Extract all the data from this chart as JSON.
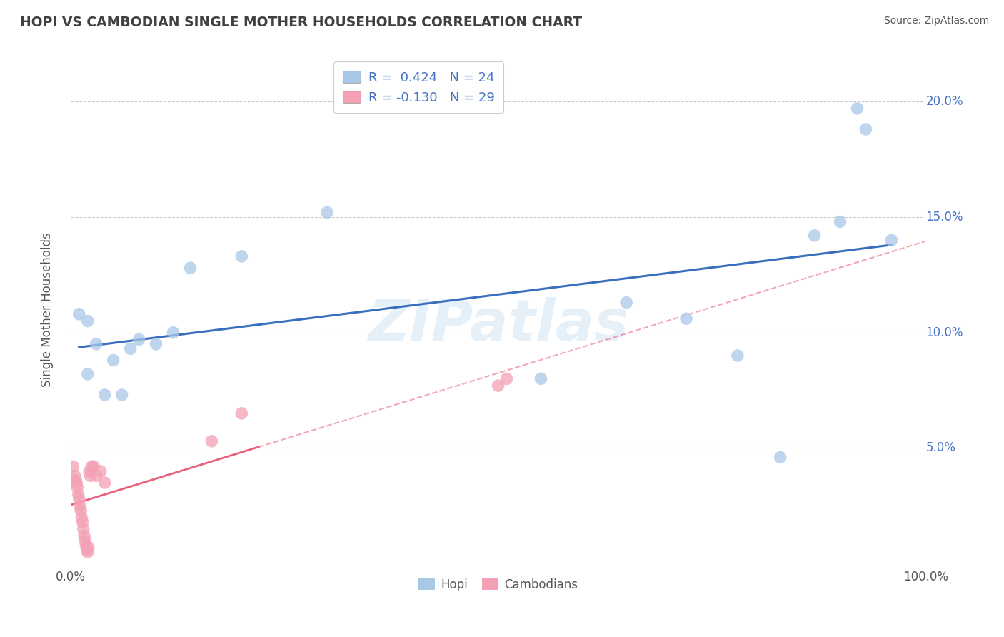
{
  "title": "HOPI VS CAMBODIAN SINGLE MOTHER HOUSEHOLDS CORRELATION CHART",
  "source": "Source: ZipAtlas.com",
  "ylabel": "Single Mother Households",
  "watermark": "ZIPatlas",
  "hopi_R": 0.424,
  "hopi_N": 24,
  "cambodian_R": -0.13,
  "cambodian_N": 29,
  "hopi_color": "#a8c8e8",
  "cambodian_color": "#f4a0b5",
  "hopi_line_color": "#3a6fbe",
  "cambodian_line_color": "#e8607a",
  "hopi_x": [
    0.01,
    0.02,
    0.02,
    0.03,
    0.04,
    0.05,
    0.06,
    0.07,
    0.08,
    0.1,
    0.12,
    0.14,
    0.2,
    0.3,
    0.55,
    0.65,
    0.72,
    0.78,
    0.83,
    0.87,
    0.9,
    0.92,
    0.93,
    0.96
  ],
  "hopi_y": [
    0.108,
    0.082,
    0.105,
    0.095,
    0.073,
    0.088,
    0.073,
    0.093,
    0.097,
    0.095,
    0.1,
    0.128,
    0.133,
    0.152,
    0.08,
    0.113,
    0.106,
    0.09,
    0.046,
    0.142,
    0.148,
    0.197,
    0.188,
    0.14
  ],
  "cambodian_x": [
    0.003,
    0.005,
    0.006,
    0.007,
    0.008,
    0.009,
    0.01,
    0.011,
    0.012,
    0.013,
    0.014,
    0.015,
    0.016,
    0.017,
    0.018,
    0.019,
    0.02,
    0.021,
    0.022,
    0.023,
    0.025,
    0.027,
    0.03,
    0.035,
    0.04,
    0.165,
    0.2,
    0.5,
    0.51
  ],
  "cambodian_y": [
    0.042,
    0.038,
    0.036,
    0.035,
    0.033,
    0.03,
    0.028,
    0.025,
    0.023,
    0.02,
    0.018,
    0.015,
    0.012,
    0.01,
    0.008,
    0.006,
    0.005,
    0.007,
    0.04,
    0.038,
    0.042,
    0.042,
    0.038,
    0.04,
    0.035,
    0.053,
    0.065,
    0.077,
    0.08
  ],
  "xlim": [
    0.0,
    1.0
  ],
  "ylim": [
    0.0,
    0.22
  ],
  "ytick_vals": [
    0.0,
    0.05,
    0.1,
    0.15,
    0.2
  ],
  "ytick_labels": [
    "",
    "5.0%",
    "10.0%",
    "15.0%",
    "20.0%"
  ],
  "xtick_vals": [
    0.0,
    0.1,
    0.2,
    0.3,
    0.4,
    0.5,
    0.6,
    0.7,
    0.8,
    0.9,
    1.0
  ],
  "xtick_labels": [
    "0.0%",
    "",
    "",
    "",
    "",
    "",
    "",
    "",
    "",
    "",
    "100.0%"
  ],
  "grid_color": "#cccccc",
  "bg_color": "#ffffff",
  "title_color": "#404040",
  "axis_label_color": "#555555",
  "tick_label_color": "#4472c4",
  "source_color": "#555555"
}
